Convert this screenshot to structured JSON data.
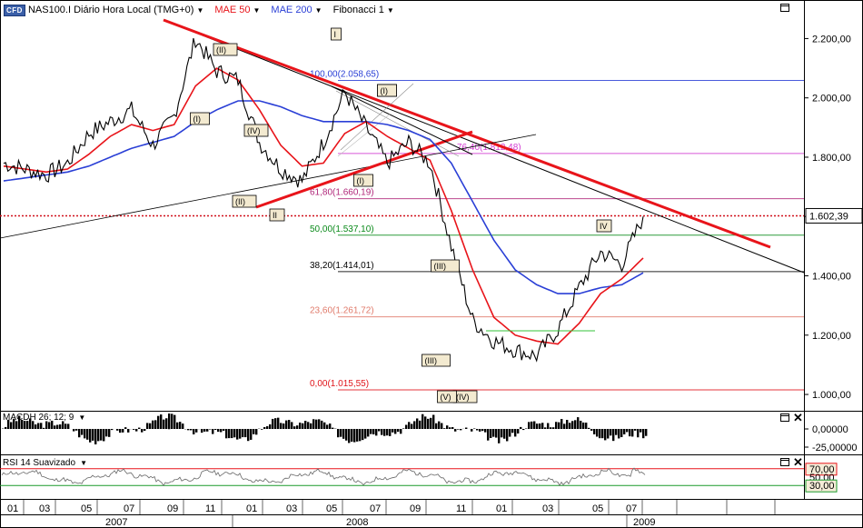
{
  "header": {
    "logo": "CFD",
    "symbol": "NAS100.I Diário Hora Local (TMG+0)",
    "indicators": [
      {
        "label": "MAE 50",
        "color": "#e8141a"
      },
      {
        "label": "MAE 200",
        "color": "#2a3fd6"
      },
      {
        "label": "Fibonacci 1",
        "color": "#000000"
      }
    ]
  },
  "price_axis": {
    "ticks": [
      "2.200,00",
      "2.000,00",
      "1.800,00",
      "1.600,00",
      "1.400,00",
      "1.200,00",
      "1.000,00"
    ],
    "current_price": "1.602,39"
  },
  "fibonacci": [
    {
      "label": "100,00(2.058,65)",
      "color": "#2a3fd6"
    },
    {
      "label": "76,40(1.812,48)",
      "color": "#d23cd2"
    },
    {
      "label": "61,80(1.660,19)",
      "color": "#b0277a"
    },
    {
      "label": "50,00(1.537,10)",
      "color": "#0a8a1a"
    },
    {
      "label": "38,20(1.414,01)",
      "color": "#000000"
    },
    {
      "label": "23,60(1.261,72)",
      "color": "#e07a6a"
    },
    {
      "label": "0,00(1.015,55)",
      "color": "#e0141a"
    }
  ],
  "wave_labels": [
    "(I)",
    "(II)",
    "(III)",
    "(IV)",
    "I",
    "II",
    "III",
    "IV",
    "(I)",
    "(II)",
    "(III)",
    "(IV)",
    "(V)",
    "(I)"
  ],
  "macd": {
    "label": "MACDH 26; 12; 9",
    "ticks": [
      "0,00000",
      "-25,00000"
    ]
  },
  "rsi": {
    "label": "RSI 14 Suavizado",
    "ticks": [
      "70,00",
      "50,00",
      "30,00"
    ]
  },
  "time_axis": {
    "months": [
      "01",
      "03",
      "05",
      "07",
      "09",
      "11",
      "01",
      "03",
      "05",
      "07",
      "09",
      "11",
      "01",
      "03",
      "05",
      "07"
    ],
    "years": [
      "2007",
      "2008",
      "2009"
    ]
  },
  "chart_data": {
    "type": "line",
    "title": "NAS100.I Diário Hora Local (TMG+0)",
    "x_unit": "month",
    "x": [
      "2007-01",
      "2007-02",
      "2007-03",
      "2007-04",
      "2007-05",
      "2007-06",
      "2007-07",
      "2007-08",
      "2007-09",
      "2007-10",
      "2007-11",
      "2007-12",
      "2008-01",
      "2008-02",
      "2008-03",
      "2008-04",
      "2008-05",
      "2008-06",
      "2008-07",
      "2008-08",
      "2008-09",
      "2008-10",
      "2008-11",
      "2008-12",
      "2009-01",
      "2009-02",
      "2009-03",
      "2009-04",
      "2009-05",
      "2009-06",
      "2009-07"
    ],
    "series": [
      {
        "name": "NAS100.I",
        "values": [
          1780,
          1760,
          1740,
          1780,
          1880,
          1920,
          1960,
          1840,
          1940,
          2200,
          2090,
          2060,
          1850,
          1760,
          1720,
          1850,
          2020,
          1900,
          1780,
          1850,
          1780,
          1500,
          1250,
          1180,
          1150,
          1130,
          1220,
          1360,
          1480,
          1440,
          1600
        ]
      },
      {
        "name": "MAE 50",
        "values": [
          1770,
          1760,
          1750,
          1760,
          1810,
          1870,
          1910,
          1890,
          1910,
          2040,
          2100,
          2060,
          1960,
          1840,
          1770,
          1780,
          1880,
          1920,
          1870,
          1830,
          1790,
          1620,
          1420,
          1260,
          1200,
          1180,
          1170,
          1240,
          1340,
          1390,
          1460
        ]
      },
      {
        "name": "MAE 200",
        "values": [
          1720,
          1730,
          1740,
          1750,
          1770,
          1800,
          1830,
          1850,
          1870,
          1920,
          1960,
          1990,
          1990,
          1970,
          1940,
          1920,
          1920,
          1920,
          1910,
          1890,
          1860,
          1780,
          1650,
          1520,
          1420,
          1370,
          1340,
          1340,
          1360,
          1370,
          1410
        ]
      }
    ],
    "ylim": [
      950,
      2300
    ],
    "fibonacci_levels": [
      {
        "ratio": 100.0,
        "value": 2058.65
      },
      {
        "ratio": 76.4,
        "value": 1812.48
      },
      {
        "ratio": 61.8,
        "value": 1660.19
      },
      {
        "ratio": 50.0,
        "value": 1537.1
      },
      {
        "ratio": 38.2,
        "value": 1414.01
      },
      {
        "ratio": 23.6,
        "value": 1261.72
      },
      {
        "ratio": 0.0,
        "value": 1015.55
      }
    ],
    "current_price": 1602.39,
    "macd_histogram": {
      "ylim": [
        -30,
        15
      ]
    },
    "rsi": {
      "levels": [
        70,
        50,
        30
      ],
      "ylim": [
        0,
        100
      ]
    }
  }
}
